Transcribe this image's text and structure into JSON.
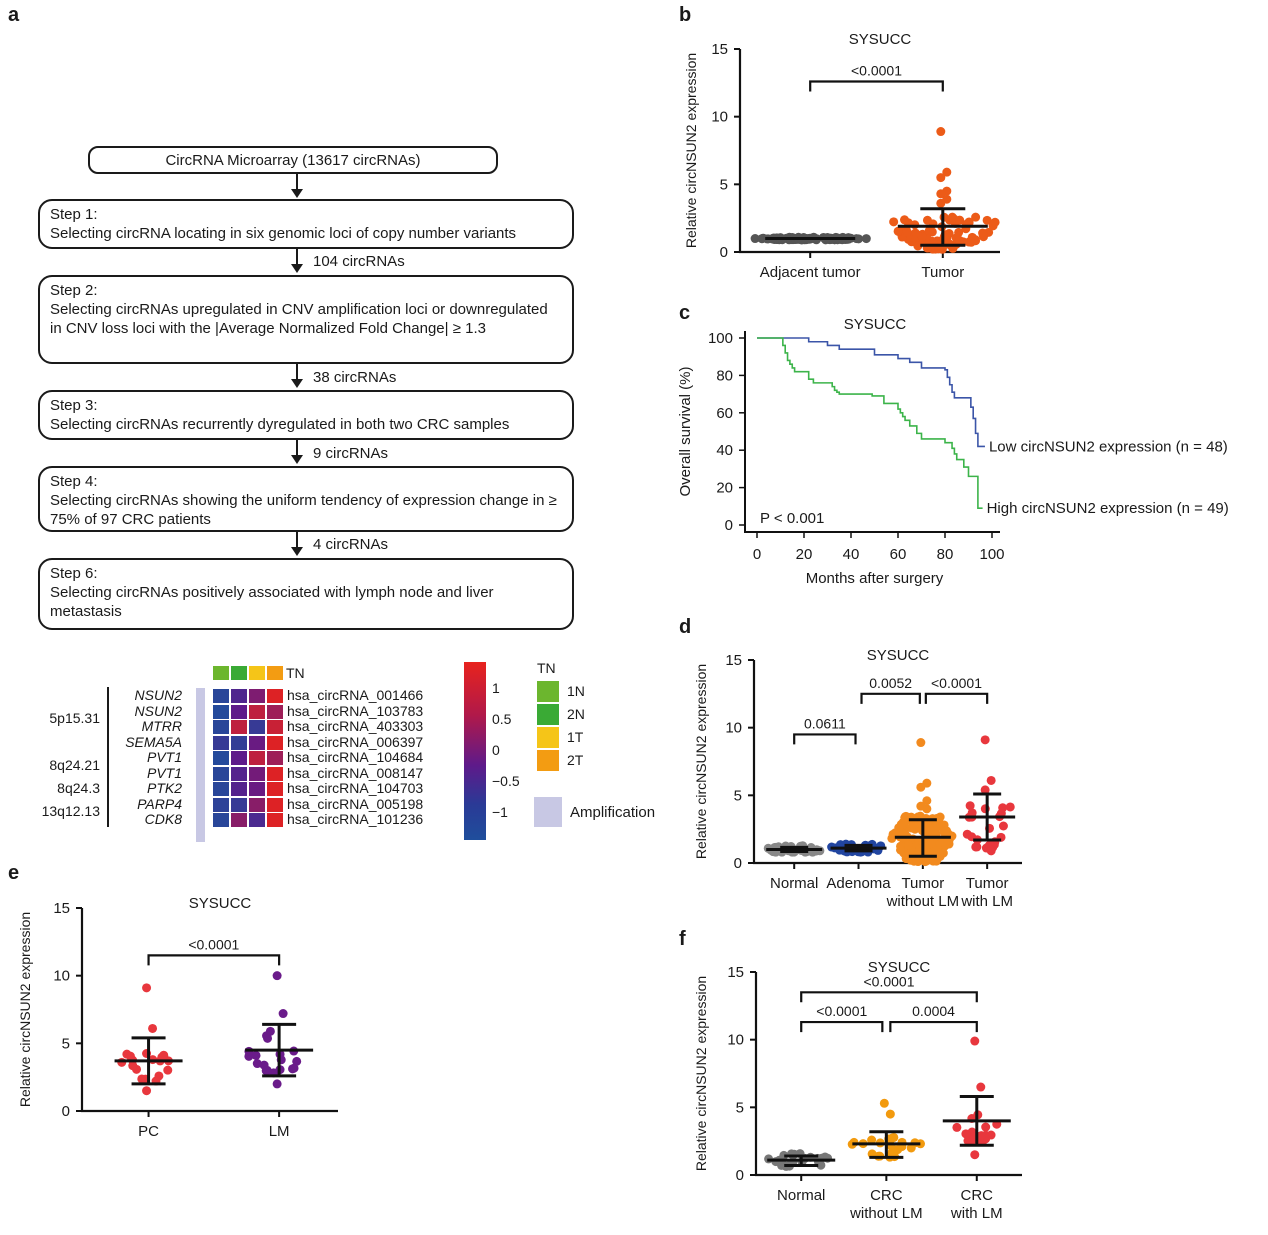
{
  "panel_labels": {
    "a": "a",
    "b": "b",
    "c": "c",
    "d": "d",
    "e": "e",
    "f": "f"
  },
  "flowchart": {
    "top_box": "CircRNA Microarray (13617 circRNAs)",
    "steps": [
      {
        "title": "Step 1:",
        "text": "Selecting circRNA locating in six genomic loci of copy number variants",
        "arrow_label": "104 circRNAs"
      },
      {
        "title": "Step 2:",
        "text": "Selecting circRNAs upregulated in CNV amplification loci or downregulated in CNV loss loci with the |Average Normalized Fold Change| ≥ 1.3",
        "arrow_label": "38 circRNAs"
      },
      {
        "title": "Step 3:",
        "text": "Selecting circRNAs recurrently dyregulated in both two CRC samples",
        "arrow_label": "9 circRNAs"
      },
      {
        "title": "Step 4:",
        "text": "Selecting circRNAs  showing the uniform tendency of expression change in ≥ 75% of 97 CRC patients",
        "arrow_label": "4 circRNAs"
      },
      {
        "title": "Step 6:",
        "text": "Selecting circRNAs positively associated with lymph node and liver metastasis",
        "arrow_label": ""
      }
    ]
  },
  "heatmap": {
    "tn_header": "TN",
    "tn_colors": [
      "#6cb62e",
      "#3aaa35",
      "#f5c518",
      "#f39c12"
    ],
    "loci": [
      {
        "label": "5p15.31",
        "rows": [
          0,
          3
        ]
      },
      {
        "label": "8q24.21",
        "rows": [
          4,
          5
        ]
      },
      {
        "label": "8q24.3",
        "rows": [
          6,
          6
        ]
      },
      {
        "label": "13q12.13",
        "rows": [
          7,
          8
        ]
      }
    ],
    "rows": [
      {
        "gene": "NSUN2",
        "circ": "hsa_circRNA_001466",
        "values": [
          -1.1,
          -0.3,
          0.3,
          1.2
        ]
      },
      {
        "gene": "NSUN2",
        "circ": "hsa_circRNA_103783",
        "values": [
          -1.2,
          0.0,
          0.9,
          0.6
        ]
      },
      {
        "gene": "MTRR",
        "circ": "hsa_circRNA_403303",
        "values": [
          -1.1,
          0.9,
          -0.8,
          1.0
        ]
      },
      {
        "gene": "SEMA5A",
        "circ": "hsa_circRNA_006397",
        "values": [
          -0.8,
          -0.9,
          0.1,
          1.2
        ]
      },
      {
        "gene": "PVT1",
        "circ": "hsa_circRNA_104684",
        "values": [
          -1.2,
          0.0,
          0.9,
          0.6
        ]
      },
      {
        "gene": "PVT1",
        "circ": "hsa_circRNA_008147",
        "values": [
          -1.1,
          -0.2,
          0.2,
          1.2
        ]
      },
      {
        "gene": "PTK2",
        "circ": "hsa_circRNA_104703",
        "values": [
          -1.1,
          -0.2,
          0.1,
          1.2
        ]
      },
      {
        "gene": "PARP4",
        "circ": "hsa_circRNA_005198",
        "values": [
          -1.0,
          -0.8,
          0.4,
          1.2
        ]
      },
      {
        "gene": "CDK8",
        "circ": "hsa_circRNA_101236",
        "values": [
          -1.1,
          0.4,
          -0.4,
          1.2
        ]
      }
    ],
    "colorbar": {
      "ticks": [
        "1",
        "0.5",
        "0",
        "−0.5",
        "−1"
      ],
      "range": [
        -1.3,
        1.3
      ],
      "low": "#1f4e9c",
      "mid": "#5e1a8a",
      "high": "#e8231d"
    },
    "legend": {
      "title": "TN",
      "items": [
        {
          "label": "1N",
          "color": "#6cb62e"
        },
        {
          "label": "2N",
          "color": "#3aaa35"
        },
        {
          "label": "1T",
          "color": "#f5c518"
        },
        {
          "label": "2T",
          "color": "#f39c12"
        }
      ],
      "amplification_label": "Amplification",
      "amplification_color": "#c8c8e4"
    }
  },
  "chart_data": [
    {
      "id": "b",
      "type": "scatter",
      "title": "SYSUCC",
      "ylabel": "Relative circNSUN2 expression",
      "ylim": [
        0,
        15
      ],
      "yticks": [
        0,
        5,
        10,
        15
      ],
      "categories": [
        "Adjacent tumor",
        "Tumor"
      ],
      "groups": [
        {
          "name": "Adjacent tumor",
          "color": "#555555",
          "mean": 1.0,
          "sd_low": 1.0,
          "sd_high": 1.0,
          "n": 97,
          "spread": [
            0.9,
            1.1
          ],
          "outliers": []
        },
        {
          "name": "Tumor",
          "color": "#ec5b18",
          "mean": 1.9,
          "sd_low": 0.5,
          "sd_high": 3.2,
          "n": 97,
          "spread": [
            0.2,
            2.7
          ],
          "outliers": [
            8.9,
            5.9,
            5.5,
            4.5,
            4.3,
            3.9,
            3.6
          ]
        }
      ],
      "comparisons": [
        {
          "from": 0,
          "to": 1,
          "label": "<0.0001",
          "level": 0
        }
      ]
    },
    {
      "id": "c",
      "type": "line",
      "title": "SYSUCC",
      "xlabel": "Months after surgery",
      "ylabel": "Overall survival (%)",
      "xlim": [
        0,
        100
      ],
      "ylim": [
        0,
        100
      ],
      "xticks": [
        0,
        20,
        40,
        60,
        80,
        100
      ],
      "yticks": [
        0,
        20,
        40,
        60,
        80,
        100
      ],
      "annotation": "P < 0.001",
      "series": [
        {
          "name": "Low circNSUN2 expression (n = 48)",
          "color": "#3b55a8",
          "x": [
            0,
            16,
            22,
            30,
            35,
            50,
            60,
            65,
            70,
            80,
            81,
            82,
            83,
            84,
            90,
            91,
            92,
            93,
            94,
            97
          ],
          "y": [
            100,
            100,
            98,
            96,
            94,
            91,
            89,
            87,
            84,
            83,
            79,
            75,
            71,
            68,
            68,
            63,
            57,
            49,
            42,
            42
          ]
        },
        {
          "name": "High circNSUN2 expression (n = 49)",
          "color": "#3cb44a",
          "x": [
            0,
            10,
            11,
            12,
            13,
            14,
            15,
            16,
            20,
            22,
            24,
            32,
            33,
            34,
            35,
            49,
            54,
            60,
            61,
            62,
            63,
            65,
            68,
            70,
            71,
            80,
            83,
            84,
            85,
            88,
            90,
            94,
            96
          ],
          "y": [
            100,
            100,
            96,
            92,
            88,
            86,
            84,
            82,
            82,
            78,
            76,
            74,
            72,
            71,
            70,
            69,
            65,
            62,
            60,
            58,
            56,
            53,
            49,
            46,
            46,
            44,
            41,
            38,
            35,
            31,
            26,
            9,
            9
          ]
        }
      ]
    },
    {
      "id": "d",
      "type": "scatter",
      "title": "SYSUCC",
      "ylabel": "Relative circNSUN2 expression",
      "ylim": [
        0,
        15
      ],
      "yticks": [
        0,
        5,
        10,
        15
      ],
      "categories": [
        "Normal",
        "Adenoma",
        "Tumor without LM",
        "Tumor with LM"
      ],
      "groups": [
        {
          "name": "Normal",
          "color": "#888888",
          "mean": 1.0,
          "sd_low": 0.85,
          "sd_high": 1.15,
          "n": 40,
          "spread": [
            0.8,
            1.3
          ],
          "outliers": []
        },
        {
          "name": "Adenoma",
          "color": "#2145a0",
          "mean": 1.1,
          "sd_low": 0.9,
          "sd_high": 1.3,
          "n": 40,
          "spread": [
            0.8,
            1.4
          ],
          "outliers": []
        },
        {
          "name": "Tumor without LM",
          "color": "#f28a1e",
          "mean": 1.9,
          "sd_low": 0.5,
          "sd_high": 3.2,
          "n": 160,
          "spread": [
            0.1,
            3.5
          ],
          "outliers": [
            8.9,
            5.9,
            5.6,
            4.6,
            4.2,
            4.0
          ]
        },
        {
          "name": "Tumor with LM",
          "color": "#e8373d",
          "mean": 3.4,
          "sd_low": 1.7,
          "sd_high": 5.1,
          "n": 24,
          "spread": [
            1.0,
            4.5
          ],
          "outliers": [
            9.1,
            6.1,
            5.4,
            0.9
          ]
        }
      ],
      "comparisons": [
        {
          "from": 0,
          "to": 1,
          "label": "0.0611",
          "level": 0
        },
        {
          "from": 1,
          "to": 2,
          "label": "0.0052",
          "level": 1
        },
        {
          "from": 2,
          "to": 3,
          "label": "<0.0001",
          "level": 1
        }
      ]
    },
    {
      "id": "e",
      "type": "scatter",
      "title": "SYSUCC",
      "ylabel": "Relative circNSUN2 expression",
      "ylim": [
        0,
        15
      ],
      "yticks": [
        0,
        5,
        10,
        15
      ],
      "categories": [
        "PC",
        "LM"
      ],
      "groups": [
        {
          "name": "PC",
          "color": "#e8373d",
          "mean": 3.7,
          "sd_low": 2.0,
          "sd_high": 5.4,
          "n": 18,
          "spread": [
            2.2,
            4.3
          ],
          "outliers": [
            9.1,
            6.1,
            1.5
          ]
        },
        {
          "name": "LM",
          "color": "#6a1b8a",
          "mean": 4.5,
          "sd_low": 2.6,
          "sd_high": 6.4,
          "n": 18,
          "spread": [
            2.8,
            6.0
          ],
          "outliers": [
            10.0,
            7.2,
            2.0
          ]
        }
      ],
      "comparisons": [
        {
          "from": 0,
          "to": 1,
          "label": "<0.0001",
          "level": 0
        }
      ]
    },
    {
      "id": "f",
      "type": "scatter",
      "title": "SYSUCC",
      "ylabel": "Relative circNSUN2 expression",
      "ylim": [
        0,
        15
      ],
      "yticks": [
        0,
        5,
        10,
        15
      ],
      "categories": [
        "Normal",
        "CRC without LM",
        "CRC with LM"
      ],
      "groups": [
        {
          "name": "Normal",
          "color": "#777777",
          "mean": 1.1,
          "sd_low": 0.7,
          "sd_high": 1.4,
          "n": 24,
          "spread": [
            0.6,
            1.6
          ],
          "outliers": []
        },
        {
          "name": "CRC without LM",
          "color": "#f29a0e",
          "mean": 2.3,
          "sd_low": 1.3,
          "sd_high": 3.2,
          "n": 24,
          "spread": [
            1.3,
            2.8
          ],
          "outliers": [
            5.3,
            4.5
          ]
        },
        {
          "name": "CRC with LM",
          "color": "#e8373d",
          "mean": 4.0,
          "sd_low": 2.2,
          "sd_high": 5.8,
          "n": 20,
          "spread": [
            2.5,
            4.5
          ],
          "outliers": [
            9.9,
            6.5,
            1.5
          ]
        }
      ],
      "comparisons": [
        {
          "from": 0,
          "to": 1,
          "label": "<0.0001",
          "level": 0
        },
        {
          "from": 1,
          "to": 2,
          "label": "0.0004",
          "level": 0
        },
        {
          "from": 0,
          "to": 2,
          "label": "<0.0001",
          "level": 1
        }
      ]
    }
  ]
}
